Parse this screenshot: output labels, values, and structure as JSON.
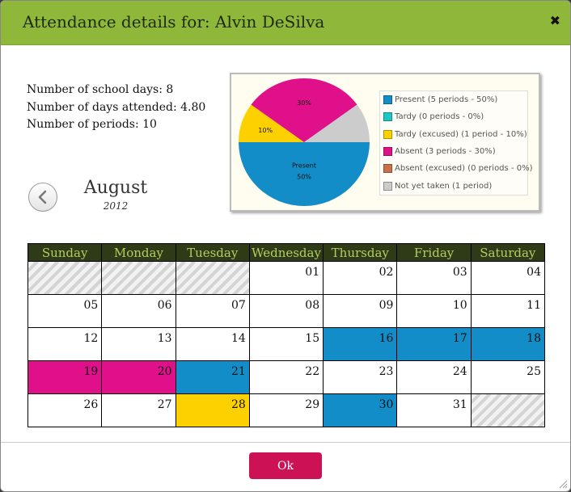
{
  "dialog": {
    "title": "Attendance details for: Alvin DeSilva",
    "close_icon": "close-icon"
  },
  "stats": {
    "school_days": "Number of school days: 8",
    "days_attended": "Number of days attended: 4.80",
    "periods": "Number of periods: 10"
  },
  "chart_data": {
    "type": "pie",
    "slices": [
      {
        "name": "Present",
        "value": 50,
        "color": "#128dc8",
        "label_line1": "Present",
        "label_line2": "50%"
      },
      {
        "name": "Tardy (excused)",
        "value": 10,
        "color": "#fdd000",
        "label_line1": "10%"
      },
      {
        "name": "Absent",
        "value": 30,
        "color": "#e0108a",
        "label_line1": "30%"
      },
      {
        "name": "Not yet taken",
        "value": 10,
        "color": "#cccccc"
      }
    ],
    "legend": [
      {
        "label": "Present (5 periods - 50%)",
        "color": "#128dc8"
      },
      {
        "label": "Tardy (0 periods - 0%)",
        "color": "#1ec6c6"
      },
      {
        "label": "Tardy (excused) (1 period - 10%)",
        "color": "#fdd000"
      },
      {
        "label": "Absent (3 periods - 30%)",
        "color": "#e0108a"
      },
      {
        "label": "Absent (excused) (0 periods - 0%)",
        "color": "#c8714a"
      },
      {
        "label": "Not yet taken (1 period)",
        "color": "#cccccc"
      }
    ]
  },
  "calendar": {
    "month": "August",
    "year": "2012",
    "prev_icon": "chevron-left-icon",
    "weekdays": [
      "Sunday",
      "Monday",
      "Tuesday",
      "Wednesday",
      "Thursday",
      "Friday",
      "Saturday"
    ],
    "weeks": [
      [
        {
          "day": "",
          "status": "pad"
        },
        {
          "day": "",
          "status": "pad"
        },
        {
          "day": "",
          "status": "pad"
        },
        {
          "day": "01",
          "status": ""
        },
        {
          "day": "02",
          "status": ""
        },
        {
          "day": "03",
          "status": ""
        },
        {
          "day": "04",
          "status": ""
        }
      ],
      [
        {
          "day": "05",
          "status": ""
        },
        {
          "day": "06",
          "status": ""
        },
        {
          "day": "07",
          "status": ""
        },
        {
          "day": "08",
          "status": ""
        },
        {
          "day": "09",
          "status": ""
        },
        {
          "day": "10",
          "status": ""
        },
        {
          "day": "11",
          "status": ""
        }
      ],
      [
        {
          "day": "12",
          "status": ""
        },
        {
          "day": "13",
          "status": ""
        },
        {
          "day": "14",
          "status": ""
        },
        {
          "day": "15",
          "status": ""
        },
        {
          "day": "16",
          "status": "present"
        },
        {
          "day": "17",
          "status": "present"
        },
        {
          "day": "18",
          "status": "present"
        }
      ],
      [
        {
          "day": "19",
          "status": "absent"
        },
        {
          "day": "20",
          "status": "absent"
        },
        {
          "day": "21",
          "status": "present"
        },
        {
          "day": "22",
          "status": ""
        },
        {
          "day": "23",
          "status": ""
        },
        {
          "day": "24",
          "status": ""
        },
        {
          "day": "25",
          "status": ""
        }
      ],
      [
        {
          "day": "26",
          "status": ""
        },
        {
          "day": "27",
          "status": ""
        },
        {
          "day": "28",
          "status": "tardy"
        },
        {
          "day": "29",
          "status": ""
        },
        {
          "day": "30",
          "status": "present"
        },
        {
          "day": "31",
          "status": ""
        },
        {
          "day": "",
          "status": "pad"
        }
      ]
    ]
  },
  "footer": {
    "ok_label": "Ok"
  }
}
